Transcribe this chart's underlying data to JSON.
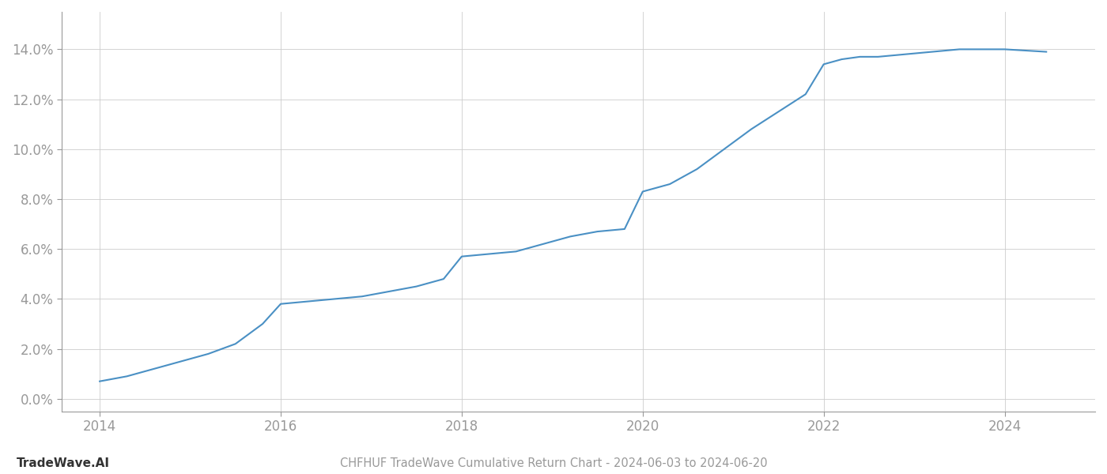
{
  "title": "CHFHUF TradeWave Cumulative Return Chart - 2024-06-03 to 2024-06-20",
  "watermark": "TradeWave.AI",
  "line_color": "#4a90c4",
  "line_width": 1.5,
  "background_color": "#ffffff",
  "grid_color": "#cccccc",
  "x_years": [
    2014.0,
    2014.3,
    2014.6,
    2014.9,
    2015.2,
    2015.5,
    2015.8,
    2016.0,
    2016.3,
    2016.6,
    2016.9,
    2017.2,
    2017.5,
    2017.8,
    2018.0,
    2018.3,
    2018.6,
    2018.9,
    2019.2,
    2019.5,
    2019.8,
    2020.0,
    2020.3,
    2020.6,
    2020.9,
    2021.2,
    2021.5,
    2021.8,
    2022.0,
    2022.2,
    2022.4,
    2022.6,
    2022.9,
    2023.2,
    2023.5,
    2023.8,
    2024.0,
    2024.46
  ],
  "y_values": [
    0.007,
    0.009,
    0.012,
    0.015,
    0.018,
    0.022,
    0.03,
    0.038,
    0.039,
    0.04,
    0.041,
    0.043,
    0.045,
    0.048,
    0.057,
    0.058,
    0.059,
    0.062,
    0.065,
    0.067,
    0.068,
    0.083,
    0.086,
    0.092,
    0.1,
    0.108,
    0.115,
    0.122,
    0.134,
    0.136,
    0.137,
    0.137,
    0.138,
    0.139,
    0.14,
    0.14,
    0.14,
    0.139
  ],
  "xlim": [
    2013.58,
    2025.0
  ],
  "ylim": [
    -0.005,
    0.155
  ],
  "yticks": [
    0.0,
    0.02,
    0.04,
    0.06,
    0.08,
    0.1,
    0.12,
    0.14
  ],
  "xticks": [
    2014,
    2016,
    2018,
    2020,
    2022,
    2024
  ],
  "tick_label_color": "#999999",
  "axis_color": "#999999",
  "title_fontsize": 10.5,
  "tick_fontsize": 12,
  "watermark_fontsize": 11
}
